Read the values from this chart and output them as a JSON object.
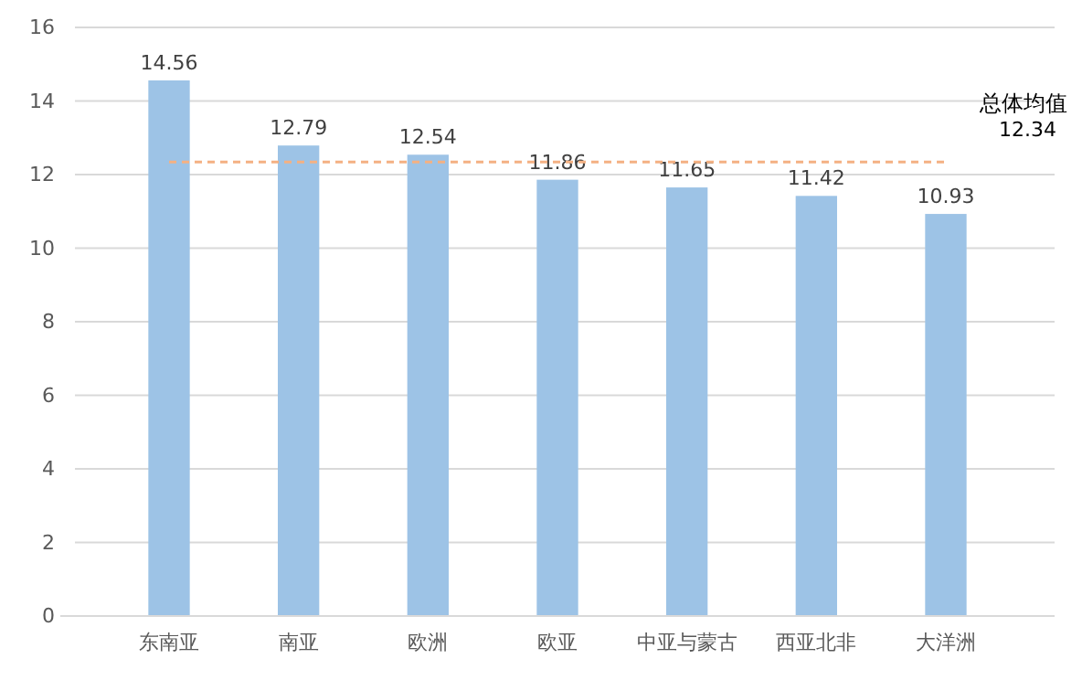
{
  "chart_data": {
    "type": "bar",
    "categories": [
      "东南亚",
      "南亚",
      "欧洲",
      "欧亚",
      "中亚与蒙古",
      "西亚北非",
      "大洋洲"
    ],
    "values": [
      14.56,
      12.79,
      12.54,
      11.86,
      11.65,
      11.42,
      10.93
    ],
    "color": "#9dc3e6",
    "data_labels": true,
    "ylim": [
      0,
      16
    ],
    "yticks": [
      0,
      2,
      4,
      6,
      8,
      10,
      12,
      14,
      16
    ],
    "grid": "y",
    "ref_lines": [
      {
        "axis": "y",
        "value": 12.34,
        "label": "总体均值 12.34",
        "color": "#f4b183",
        "line_style": "dashed"
      }
    ]
  }
}
